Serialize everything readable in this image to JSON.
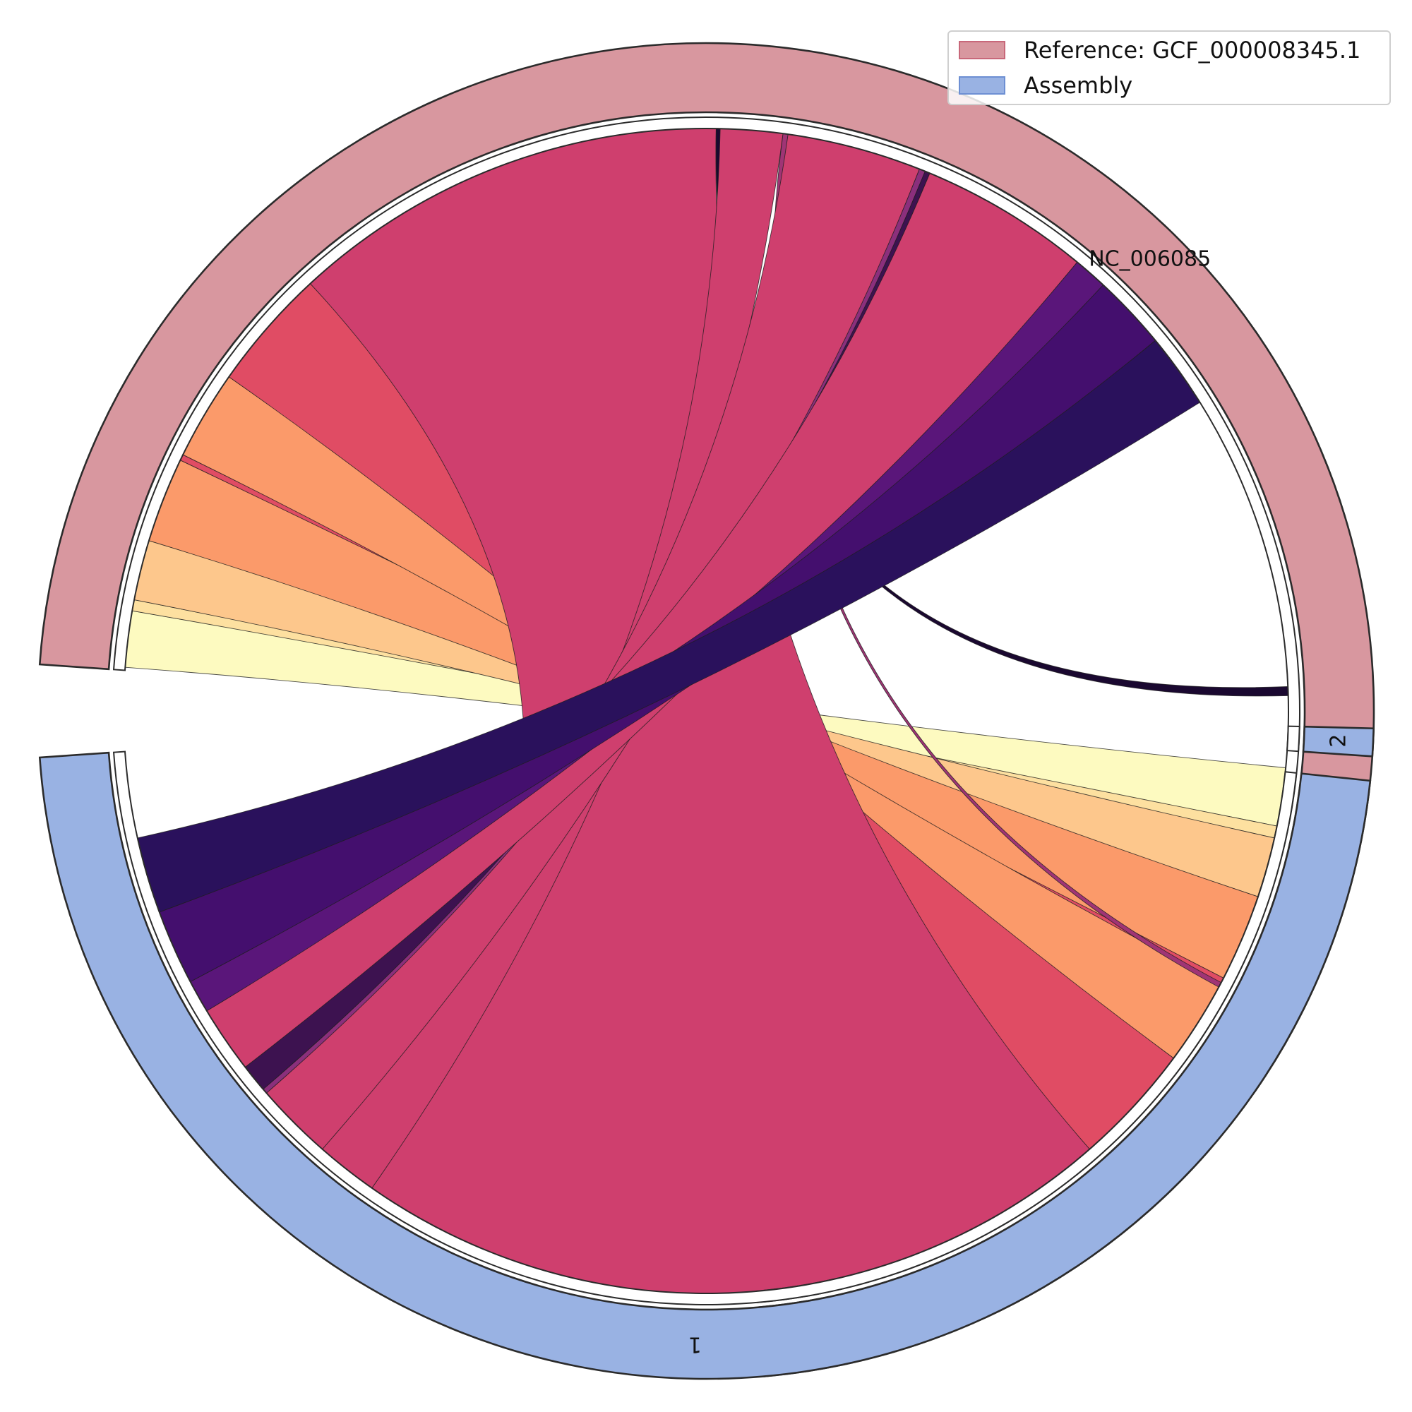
{
  "chart_data": {
    "type": "chord",
    "legend": [
      {
        "label": "Reference: GCF_000008345.1",
        "fill": "#d8979f",
        "edge": "#c8687a"
      },
      {
        "label": "Assembly",
        "fill": "#99b2e3",
        "edge": "#6d8fd3"
      }
    ],
    "segments": [
      {
        "name": "NC_006085",
        "group": "reference",
        "start_deg": 274,
        "end_deg": 535,
        "label_text": "NC_006085",
        "label_angle_deg": 0
      },
      {
        "name": "2",
        "group": "assembly",
        "start_deg": 91.5,
        "end_deg": 93.9,
        "label_text": "2",
        "label_angle_deg": 270
      },
      {
        "name": "1",
        "group": "assembly",
        "start_deg": 96,
        "end_deg": 266,
        "label_text": "1",
        "label_angle_deg": 180
      }
    ],
    "ribbons": [
      {
        "source": [
          274.3,
          279.9
        ],
        "target": [
          95.6,
          101.4
        ],
        "color": "#fdfac0"
      },
      {
        "source": [
          279.9,
          281.0
        ],
        "target": [
          101.4,
          102.6
        ],
        "color": "#fde0a0"
      },
      {
        "source": [
          281.0,
          287.0
        ],
        "target": [
          102.6,
          108.6
        ],
        "color": "#fdc78c"
      },
      {
        "source": [
          287.0,
          295.5
        ],
        "target": [
          108.6,
          117.3
        ],
        "color": "#fb9a6a"
      },
      {
        "source": [
          295.5,
          296.1
        ],
        "target": [
          117.3,
          117.9
        ],
        "color": "#e04c64"
      },
      {
        "source": [
          296.1,
          305.0
        ],
        "target": [
          117.9,
          126.6
        ],
        "color": "#fb9a6a"
      },
      {
        "source": [
          305.0,
          317.2
        ],
        "target": [
          126.6,
          138.8
        ],
        "color": "#e04c64"
      },
      {
        "source": [
          317.2,
          361.0
        ],
        "target": [
          138.8,
          215.0
        ],
        "color": "#cf3f6e"
      },
      {
        "source": [
          361.0,
          361.4
        ],
        "target": [
          87.6,
          88.5
        ],
        "color": "#1a0830"
      },
      {
        "source": [
          361.4,
          367.6
        ],
        "target": [
          215.0,
          221.2
        ],
        "color": "#cf3f6e"
      },
      {
        "source": [
          367.6,
          368.1
        ],
        "target": [
          117.8,
          118.3
        ],
        "color": "#a03475"
      },
      {
        "source": [
          368.1,
          381.5
        ],
        "target": [
          221.2,
          229.0
        ],
        "color": "#cf3f6e"
      },
      {
        "source": [
          381.5,
          382.1
        ],
        "target": [
          229.0,
          229.5
        ],
        "color": "#8b2f7c"
      },
      {
        "source": [
          382.1,
          382.6
        ],
        "target": [
          229.5,
          232.3
        ],
        "color": "#3d1250"
      },
      {
        "source": [
          382.6,
          399.6
        ],
        "target": [
          232.3,
          239.0
        ],
        "color": "#cf3f6e"
      },
      {
        "source": [
          399.6,
          403.0
        ],
        "target": [
          239.0,
          242.3
        ],
        "color": "#5a167a"
      },
      {
        "source": [
          403.0,
          410.5
        ],
        "target": [
          242.3,
          249.8
        ],
        "color": "#440f6e"
      },
      {
        "source": [
          410.5,
          418.0
        ],
        "target": [
          249.8,
          257.4
        ],
        "color": "#2a115c"
      }
    ]
  }
}
